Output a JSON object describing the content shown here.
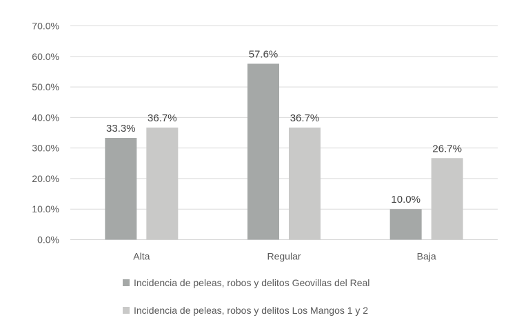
{
  "chart_data": {
    "type": "bar",
    "categories": [
      "Alta",
      "Regular",
      "Baja"
    ],
    "series": [
      {
        "name": "Incidencia de peleas, robos y delitos Geovillas del Real",
        "values": [
          33.3,
          57.6,
          10.0
        ],
        "color": "#a5a8a7"
      },
      {
        "name": "Incidencia de peleas, robos y delitos Los Mangos 1 y 2",
        "values": [
          36.7,
          36.7,
          26.7
        ],
        "color": "#c9c9c8"
      }
    ],
    "data_labels": [
      [
        "33.3%",
        "57.6%",
        "10.0%"
      ],
      [
        "36.7%",
        "36.7%",
        "26.7%"
      ]
    ],
    "yticks": [
      "0.0%",
      "10.0%",
      "20.0%",
      "30.0%",
      "40.0%",
      "50.0%",
      "60.0%",
      "70.0%"
    ],
    "ylim": [
      0,
      70
    ],
    "grid": true,
    "legend_position": "bottom",
    "gridline_color": "#d9d9d9"
  }
}
